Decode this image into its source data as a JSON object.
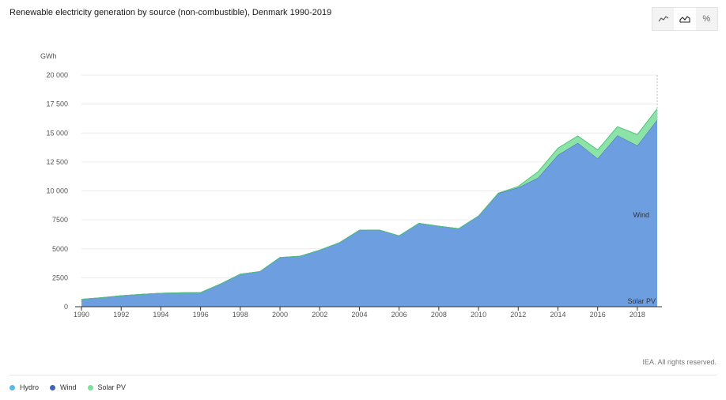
{
  "title": "Renewable electricity generation by source (non-combustible), Denmark 1990-2019",
  "view_toggles": [
    {
      "name": "line-chart-icon",
      "label": ""
    },
    {
      "name": "area-chart-icon",
      "label": ""
    },
    {
      "name": "percent-icon",
      "label": "%"
    }
  ],
  "copyright": "IEA. All rights reserved.",
  "colors": {
    "hydro": "#5bb8e6",
    "wind": "#6d9ee0",
    "wind_line": "#4a6fae",
    "solar": "#8be3a8",
    "solar_line": "#4fc37a",
    "grid": "#ececec"
  },
  "legend": [
    {
      "name": "Hydro",
      "color": "#5bb8e6"
    },
    {
      "name": "Wind",
      "color": "#3f63b8"
    },
    {
      "name": "Solar PV",
      "color": "#7fe09b"
    }
  ],
  "chart_data": {
    "type": "area",
    "stacked": true,
    "title": "Renewable electricity generation by source (non-combustible), Denmark 1990-2019",
    "ylabel": "GWh",
    "ylim": [
      0,
      20000
    ],
    "yticks": [
      0,
      2500,
      5000,
      7500,
      10000,
      12500,
      15000,
      17500,
      20000
    ],
    "ytick_labels": [
      "0",
      "2500",
      "5000",
      "7500",
      "10 000",
      "12 500",
      "15 000",
      "17 500",
      "20 000"
    ],
    "xticks": [
      1990,
      1992,
      1994,
      1996,
      1998,
      2000,
      2002,
      2004,
      2006,
      2008,
      2010,
      2012,
      2014,
      2016,
      2018
    ],
    "x": [
      1990,
      1991,
      1992,
      1993,
      1994,
      1995,
      1996,
      1997,
      1998,
      1999,
      2000,
      2001,
      2002,
      2003,
      2004,
      2005,
      2006,
      2007,
      2008,
      2009,
      2010,
      2011,
      2012,
      2013,
      2014,
      2015,
      2016,
      2017,
      2018,
      2019
    ],
    "series": [
      {
        "name": "Hydro",
        "values": [
          28,
          27,
          30,
          25,
          33,
          30,
          19,
          19,
          27,
          31,
          30,
          28,
          32,
          21,
          27,
          23,
          23,
          28,
          26,
          19,
          21,
          17,
          17,
          13,
          15,
          18,
          19,
          18,
          16,
          16
        ]
      },
      {
        "name": "Wind",
        "values": [
          610,
          747,
          916,
          1038,
          1124,
          1170,
          1200,
          1936,
          2780,
          3010,
          4220,
          4330,
          4850,
          5510,
          6580,
          6600,
          6100,
          7170,
          6930,
          6720,
          7810,
          9770,
          10270,
          11120,
          13080,
          14130,
          12780,
          14780,
          13900,
          16120
        ]
      },
      {
        "name": "Solar PV",
        "values": [
          0,
          0,
          0,
          0,
          0,
          0,
          0,
          0,
          0,
          0,
          0,
          0,
          0,
          0,
          0,
          0,
          0,
          0,
          0,
          0,
          0,
          20,
          100,
          520,
          600,
          600,
          740,
          750,
          950,
          960
        ]
      }
    ],
    "series_labels": [
      {
        "series": "Wind",
        "text": "Wind"
      },
      {
        "series": "Solar PV",
        "text": "Solar PV"
      }
    ],
    "grid": true,
    "legend_position": "bottom-left"
  }
}
